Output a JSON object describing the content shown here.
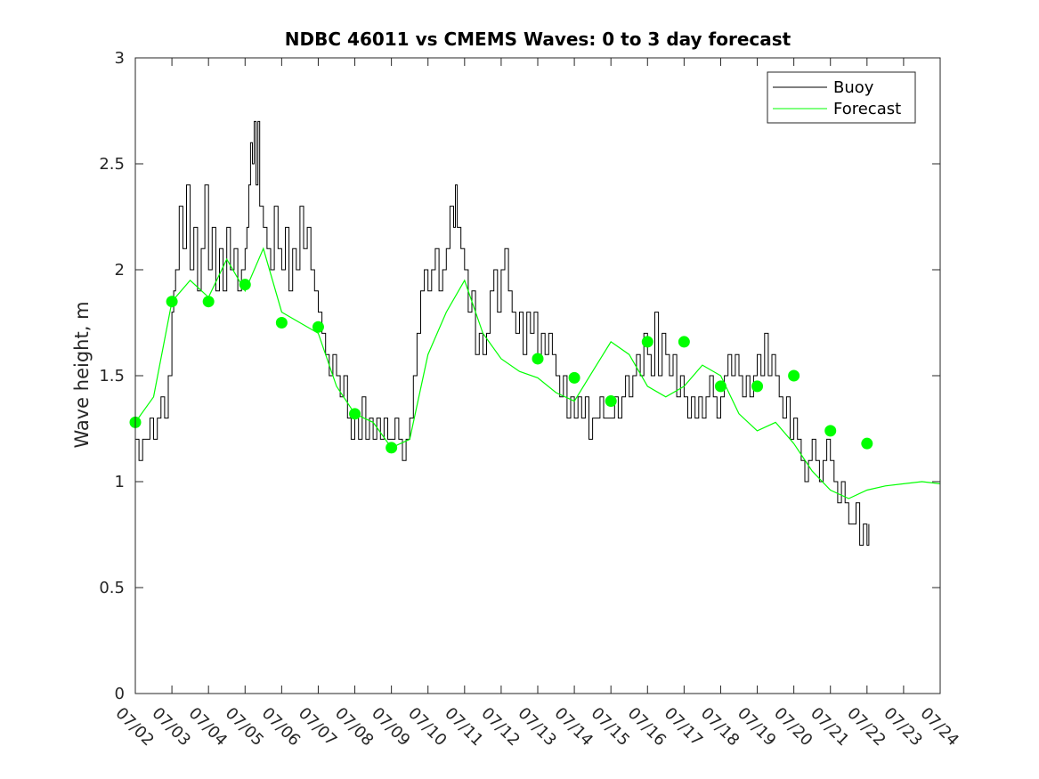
{
  "chart_data": {
    "type": "line",
    "title": "NDBC 46011 vs CMEMS Waves: 0 to 3 day forecast",
    "xlabel": "",
    "ylabel": "Wave height, m",
    "xlim": [
      "07/02",
      "07/24"
    ],
    "ylim": [
      0,
      3
    ],
    "x_ticks": [
      "07/02",
      "07/03",
      "07/04",
      "07/05",
      "07/06",
      "07/07",
      "07/08",
      "07/09",
      "07/10",
      "07/11",
      "07/12",
      "07/13",
      "07/14",
      "07/15",
      "07/16",
      "07/17",
      "07/18",
      "07/19",
      "07/20",
      "07/21",
      "07/22",
      "07/23",
      "07/24"
    ],
    "y_ticks": [
      "0",
      "0.5",
      "1",
      "1.5",
      "2",
      "2.5",
      "3"
    ],
    "grid": false,
    "legend_position": "top-right",
    "colors": {
      "buoy": "#000000",
      "forecast": "#00ff00",
      "marker": "#00ff00",
      "axis": "#262626"
    },
    "legend": [
      {
        "label": "Buoy",
        "color": "#000000"
      },
      {
        "label": "Forecast",
        "color": "#00ff00"
      }
    ],
    "series": [
      {
        "name": "Buoy",
        "x_unit": "days since 07/02",
        "points": [
          [
            0.0,
            1.2
          ],
          [
            0.1,
            1.1
          ],
          [
            0.2,
            1.2
          ],
          [
            0.3,
            1.2
          ],
          [
            0.4,
            1.3
          ],
          [
            0.5,
            1.2
          ],
          [
            0.6,
            1.3
          ],
          [
            0.7,
            1.4
          ],
          [
            0.8,
            1.3
          ],
          [
            0.9,
            1.5
          ],
          [
            1.0,
            1.8
          ],
          [
            1.05,
            1.9
          ],
          [
            1.1,
            2.0
          ],
          [
            1.2,
            2.3
          ],
          [
            1.3,
            2.1
          ],
          [
            1.4,
            2.4
          ],
          [
            1.5,
            2.0
          ],
          [
            1.6,
            2.2
          ],
          [
            1.7,
            1.9
          ],
          [
            1.8,
            2.1
          ],
          [
            1.9,
            2.4
          ],
          [
            2.0,
            2.0
          ],
          [
            2.1,
            2.2
          ],
          [
            2.2,
            1.9
          ],
          [
            2.3,
            2.1
          ],
          [
            2.4,
            1.9
          ],
          [
            2.5,
            2.2
          ],
          [
            2.6,
            2.0
          ],
          [
            2.7,
            2.1
          ],
          [
            2.8,
            1.9
          ],
          [
            2.9,
            2.0
          ],
          [
            3.0,
            2.1
          ],
          [
            3.05,
            2.2
          ],
          [
            3.1,
            2.4
          ],
          [
            3.15,
            2.6
          ],
          [
            3.2,
            2.5
          ],
          [
            3.25,
            2.7
          ],
          [
            3.3,
            2.4
          ],
          [
            3.35,
            2.7
          ],
          [
            3.4,
            2.3
          ],
          [
            3.5,
            2.2
          ],
          [
            3.6,
            2.1
          ],
          [
            3.7,
            2.0
          ],
          [
            3.8,
            2.3
          ],
          [
            3.9,
            2.1
          ],
          [
            4.0,
            2.0
          ],
          [
            4.1,
            2.2
          ],
          [
            4.2,
            1.9
          ],
          [
            4.3,
            2.1
          ],
          [
            4.4,
            2.0
          ],
          [
            4.5,
            2.3
          ],
          [
            4.6,
            2.1
          ],
          [
            4.7,
            2.2
          ],
          [
            4.8,
            2.0
          ],
          [
            4.9,
            1.9
          ],
          [
            5.0,
            1.8
          ],
          [
            5.1,
            1.7
          ],
          [
            5.2,
            1.6
          ],
          [
            5.3,
            1.5
          ],
          [
            5.4,
            1.6
          ],
          [
            5.5,
            1.5
          ],
          [
            5.6,
            1.4
          ],
          [
            5.7,
            1.5
          ],
          [
            5.8,
            1.3
          ],
          [
            5.9,
            1.2
          ],
          [
            6.0,
            1.3
          ],
          [
            6.1,
            1.2
          ],
          [
            6.2,
            1.4
          ],
          [
            6.3,
            1.2
          ],
          [
            6.4,
            1.3
          ],
          [
            6.5,
            1.2
          ],
          [
            6.6,
            1.3
          ],
          [
            6.7,
            1.2
          ],
          [
            6.8,
            1.3
          ],
          [
            6.9,
            1.2
          ],
          [
            7.0,
            1.2
          ],
          [
            7.1,
            1.3
          ],
          [
            7.2,
            1.2
          ],
          [
            7.3,
            1.1
          ],
          [
            7.4,
            1.2
          ],
          [
            7.5,
            1.3
          ],
          [
            7.6,
            1.5
          ],
          [
            7.7,
            1.7
          ],
          [
            7.8,
            1.9
          ],
          [
            7.9,
            2.0
          ],
          [
            8.0,
            1.9
          ],
          [
            8.1,
            2.0
          ],
          [
            8.2,
            2.1
          ],
          [
            8.3,
            1.9
          ],
          [
            8.4,
            2.0
          ],
          [
            8.5,
            2.1
          ],
          [
            8.6,
            2.3
          ],
          [
            8.7,
            2.2
          ],
          [
            8.75,
            2.4
          ],
          [
            8.8,
            2.2
          ],
          [
            8.9,
            2.1
          ],
          [
            9.0,
            2.0
          ],
          [
            9.1,
            1.8
          ],
          [
            9.2,
            1.9
          ],
          [
            9.3,
            1.6
          ],
          [
            9.4,
            1.7
          ],
          [
            9.5,
            1.6
          ],
          [
            9.6,
            1.7
          ],
          [
            9.7,
            1.9
          ],
          [
            9.8,
            2.0
          ],
          [
            9.9,
            1.8
          ],
          [
            10.0,
            2.0
          ],
          [
            10.1,
            2.1
          ],
          [
            10.2,
            1.9
          ],
          [
            10.3,
            1.8
          ],
          [
            10.4,
            1.7
          ],
          [
            10.5,
            1.8
          ],
          [
            10.6,
            1.6
          ],
          [
            10.7,
            1.8
          ],
          [
            10.8,
            1.7
          ],
          [
            10.9,
            1.8
          ],
          [
            11.0,
            1.6
          ],
          [
            11.1,
            1.7
          ],
          [
            11.2,
            1.6
          ],
          [
            11.3,
            1.7
          ],
          [
            11.4,
            1.6
          ],
          [
            11.5,
            1.5
          ],
          [
            11.6,
            1.4
          ],
          [
            11.7,
            1.5
          ],
          [
            11.8,
            1.3
          ],
          [
            11.9,
            1.4
          ],
          [
            12.0,
            1.3
          ],
          [
            12.1,
            1.4
          ],
          [
            12.2,
            1.3
          ],
          [
            12.3,
            1.4
          ],
          [
            12.4,
            1.2
          ],
          [
            12.5,
            1.3
          ],
          [
            12.6,
            1.3
          ],
          [
            12.7,
            1.4
          ],
          [
            12.8,
            1.3
          ],
          [
            12.9,
            1.3
          ],
          [
            13.0,
            1.3
          ],
          [
            13.1,
            1.4
          ],
          [
            13.2,
            1.3
          ],
          [
            13.3,
            1.4
          ],
          [
            13.4,
            1.5
          ],
          [
            13.5,
            1.4
          ],
          [
            13.6,
            1.5
          ],
          [
            13.7,
            1.6
          ],
          [
            13.8,
            1.5
          ],
          [
            13.9,
            1.7
          ],
          [
            14.0,
            1.6
          ],
          [
            14.1,
            1.5
          ],
          [
            14.2,
            1.8
          ],
          [
            14.3,
            1.5
          ],
          [
            14.4,
            1.7
          ],
          [
            14.5,
            1.6
          ],
          [
            14.6,
            1.5
          ],
          [
            14.7,
            1.6
          ],
          [
            14.8,
            1.4
          ],
          [
            14.9,
            1.5
          ],
          [
            15.0,
            1.4
          ],
          [
            15.1,
            1.3
          ],
          [
            15.2,
            1.4
          ],
          [
            15.3,
            1.3
          ],
          [
            15.4,
            1.4
          ],
          [
            15.5,
            1.3
          ],
          [
            15.6,
            1.4
          ],
          [
            15.7,
            1.5
          ],
          [
            15.8,
            1.4
          ],
          [
            15.9,
            1.3
          ],
          [
            16.0,
            1.4
          ],
          [
            16.1,
            1.5
          ],
          [
            16.2,
            1.6
          ],
          [
            16.3,
            1.5
          ],
          [
            16.4,
            1.6
          ],
          [
            16.5,
            1.5
          ],
          [
            16.6,
            1.4
          ],
          [
            16.7,
            1.5
          ],
          [
            16.8,
            1.4
          ],
          [
            16.9,
            1.5
          ],
          [
            17.0,
            1.6
          ],
          [
            17.1,
            1.5
          ],
          [
            17.2,
            1.7
          ],
          [
            17.3,
            1.5
          ],
          [
            17.4,
            1.6
          ],
          [
            17.5,
            1.5
          ],
          [
            17.6,
            1.4
          ],
          [
            17.7,
            1.3
          ],
          [
            17.8,
            1.4
          ],
          [
            17.9,
            1.2
          ],
          [
            18.0,
            1.3
          ],
          [
            18.1,
            1.2
          ],
          [
            18.2,
            1.1
          ],
          [
            18.3,
            1.0
          ],
          [
            18.4,
            1.1
          ],
          [
            18.5,
            1.2
          ],
          [
            18.6,
            1.1
          ],
          [
            18.7,
            1.0
          ],
          [
            18.8,
            1.1
          ],
          [
            18.9,
            1.2
          ],
          [
            19.0,
            1.1
          ],
          [
            19.1,
            1.0
          ],
          [
            19.2,
            0.9
          ],
          [
            19.3,
            1.0
          ],
          [
            19.4,
            0.9
          ],
          [
            19.5,
            0.8
          ],
          [
            19.6,
            0.8
          ],
          [
            19.7,
            0.9
          ],
          [
            19.8,
            0.7
          ],
          [
            19.9,
            0.8
          ],
          [
            20.0,
            0.7
          ],
          [
            20.05,
            0.8
          ]
        ]
      },
      {
        "name": "Forecast",
        "x_unit": "days since 07/02",
        "points": [
          [
            0.0,
            1.28
          ],
          [
            0.5,
            1.4
          ],
          [
            1.0,
            1.85
          ],
          [
            1.5,
            1.95
          ],
          [
            2.0,
            1.87
          ],
          [
            2.5,
            2.05
          ],
          [
            3.0,
            1.9
          ],
          [
            3.5,
            2.1
          ],
          [
            4.0,
            1.8
          ],
          [
            4.5,
            1.75
          ],
          [
            5.0,
            1.7
          ],
          [
            5.5,
            1.45
          ],
          [
            6.0,
            1.32
          ],
          [
            6.5,
            1.28
          ],
          [
            7.0,
            1.16
          ],
          [
            7.5,
            1.2
          ],
          [
            8.0,
            1.6
          ],
          [
            8.5,
            1.8
          ],
          [
            9.0,
            1.95
          ],
          [
            9.5,
            1.7
          ],
          [
            10.0,
            1.58
          ],
          [
            10.5,
            1.52
          ],
          [
            11.0,
            1.49
          ],
          [
            11.5,
            1.42
          ],
          [
            12.0,
            1.38
          ],
          [
            12.5,
            1.52
          ],
          [
            13.0,
            1.66
          ],
          [
            13.5,
            1.6
          ],
          [
            14.0,
            1.45
          ],
          [
            14.5,
            1.4
          ],
          [
            15.0,
            1.45
          ],
          [
            15.5,
            1.55
          ],
          [
            16.0,
            1.5
          ],
          [
            16.5,
            1.32
          ],
          [
            17.0,
            1.24
          ],
          [
            17.5,
            1.28
          ],
          [
            18.0,
            1.18
          ],
          [
            18.5,
            1.05
          ],
          [
            19.0,
            0.96
          ],
          [
            19.5,
            0.92
          ],
          [
            20.0,
            0.96
          ],
          [
            20.5,
            0.98
          ],
          [
            21.0,
            0.99
          ],
          [
            21.5,
            1.0
          ],
          [
            22.0,
            0.99
          ]
        ]
      }
    ],
    "markers": [
      [
        0,
        1.28
      ],
      [
        1,
        1.85
      ],
      [
        2,
        1.85
      ],
      [
        3,
        1.93
      ],
      [
        4,
        1.75
      ],
      [
        5,
        1.73
      ],
      [
        6,
        1.32
      ],
      [
        7,
        1.16
      ],
      [
        11,
        1.58
      ],
      [
        12,
        1.49
      ],
      [
        13,
        1.38
      ],
      [
        14,
        1.66
      ],
      [
        15,
        1.66
      ],
      [
        16,
        1.45
      ],
      [
        17,
        1.45
      ],
      [
        18,
        1.5
      ],
      [
        19,
        1.24
      ],
      [
        20,
        1.18
      ]
    ]
  }
}
